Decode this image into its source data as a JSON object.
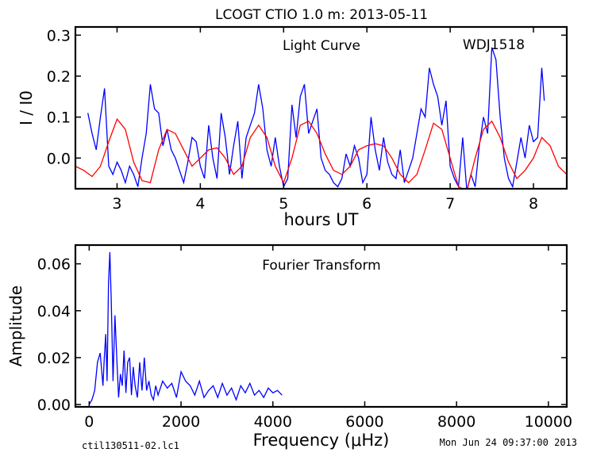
{
  "page": {
    "title": "LCOGT CTIO 1.0 m:  2013-05-11",
    "footer_left": "ctil130511-02.lc1",
    "footer_right": "Mon Jun 24 09:37:00 2013"
  },
  "chart_data": [
    {
      "type": "line",
      "title": "Light Curve",
      "annotation": "WDJ1518",
      "xlabel": "hours UT",
      "ylabel": "I / I0",
      "xlim": [
        2.5,
        8.4
      ],
      "ylim": [
        -0.075,
        0.32
      ],
      "xticks": [
        3,
        4,
        5,
        6,
        7,
        8
      ],
      "xtick_labels": [
        "3",
        "4",
        "5",
        "6",
        "7",
        "8"
      ],
      "yticks": [
        0.0,
        0.1,
        0.2,
        0.3
      ],
      "ytick_labels": [
        "0.0",
        "0.1",
        "0.2",
        "0.3"
      ],
      "grid": false,
      "series": [
        {
          "color": "#0000ff",
          "x": [
            2.65,
            2.7,
            2.75,
            2.8,
            2.85,
            2.9,
            2.95,
            3.0,
            3.05,
            3.1,
            3.15,
            3.2,
            3.25,
            3.3,
            3.35,
            3.4,
            3.45,
            3.5,
            3.55,
            3.6,
            3.65,
            3.7,
            3.75,
            3.8,
            3.85,
            3.9,
            3.95,
            4.0,
            4.05,
            4.1,
            4.15,
            4.2,
            4.25,
            4.3,
            4.35,
            4.4,
            4.45,
            4.5,
            4.55,
            4.6,
            4.65,
            4.7,
            4.75,
            4.8,
            4.85,
            4.9,
            4.95,
            5.0,
            5.05,
            5.1,
            5.15,
            5.2,
            5.25,
            5.3,
            5.35,
            5.4,
            5.45,
            5.5,
            5.55,
            5.6,
            5.65,
            5.7,
            5.75,
            5.8,
            5.85,
            5.9,
            5.95,
            6.0,
            6.05,
            6.1,
            6.15,
            6.2,
            6.25,
            6.3,
            6.35,
            6.4,
            6.45,
            6.5,
            6.55,
            6.6,
            6.65,
            6.7,
            6.75,
            6.8,
            6.85,
            6.9,
            6.95,
            7.0,
            7.05,
            7.1,
            7.15,
            7.2,
            7.25,
            7.3,
            7.35,
            7.4,
            7.45,
            7.5,
            7.55,
            7.6,
            7.65,
            7.7,
            7.75,
            7.8,
            7.85,
            7.9,
            7.95,
            8.0,
            8.05,
            8.1,
            8.13
          ],
          "y": [
            0.11,
            0.06,
            0.02,
            0.1,
            0.17,
            -0.02,
            -0.04,
            -0.01,
            -0.03,
            -0.06,
            -0.02,
            -0.04,
            -0.07,
            0.0,
            0.06,
            0.18,
            0.12,
            0.11,
            0.03,
            0.07,
            0.02,
            0.0,
            -0.03,
            -0.06,
            -0.01,
            0.05,
            0.04,
            -0.02,
            -0.05,
            0.08,
            0.0,
            -0.05,
            0.11,
            0.05,
            -0.04,
            0.03,
            0.09,
            -0.05,
            0.05,
            0.08,
            0.11,
            0.18,
            0.12,
            0.02,
            -0.02,
            0.05,
            -0.02,
            -0.07,
            -0.05,
            0.13,
            0.05,
            0.15,
            0.18,
            0.06,
            0.09,
            0.12,
            0.0,
            -0.03,
            -0.04,
            -0.06,
            -0.07,
            -0.05,
            0.01,
            -0.02,
            0.03,
            0.0,
            -0.06,
            -0.04,
            0.1,
            0.02,
            -0.03,
            0.05,
            -0.01,
            -0.04,
            -0.05,
            0.02,
            -0.06,
            -0.03,
            0.0,
            0.06,
            0.12,
            0.1,
            0.22,
            0.18,
            0.15,
            0.08,
            0.14,
            -0.02,
            -0.05,
            -0.07,
            0.05,
            -0.08,
            -0.04,
            -0.07,
            0.03,
            0.1,
            0.06,
            0.27,
            0.24,
            0.1,
            0.0,
            -0.05,
            -0.07,
            -0.01,
            0.05,
            0.0,
            0.08,
            0.04,
            0.05,
            0.22,
            0.14
          ]
        },
        {
          "color": "#ff0000",
          "x": [
            2.5,
            2.6,
            2.7,
            2.8,
            2.9,
            3.0,
            3.1,
            3.2,
            3.3,
            3.4,
            3.5,
            3.6,
            3.7,
            3.8,
            3.9,
            4.0,
            4.1,
            4.2,
            4.3,
            4.4,
            4.5,
            4.6,
            4.7,
            4.8,
            4.9,
            5.0,
            5.1,
            5.2,
            5.3,
            5.4,
            5.5,
            5.6,
            5.7,
            5.8,
            5.9,
            6.0,
            6.1,
            6.2,
            6.3,
            6.4,
            6.5,
            6.6,
            6.7,
            6.8,
            6.9,
            7.0,
            7.1,
            7.2,
            7.3,
            7.4,
            7.5,
            7.6,
            7.7,
            7.8,
            7.9,
            8.0,
            8.1,
            8.2,
            8.3,
            8.4
          ],
          "y": [
            -0.02,
            -0.03,
            -0.045,
            -0.02,
            0.04,
            0.095,
            0.07,
            -0.01,
            -0.055,
            -0.06,
            0.02,
            0.07,
            0.06,
            0.02,
            -0.02,
            0.0,
            0.02,
            0.025,
            0.0,
            -0.04,
            -0.02,
            0.05,
            0.08,
            0.05,
            -0.02,
            -0.06,
            0.0,
            0.08,
            0.09,
            0.06,
            0.01,
            -0.03,
            -0.04,
            -0.02,
            0.02,
            0.03,
            0.035,
            0.03,
            0.0,
            -0.04,
            -0.06,
            -0.04,
            0.02,
            0.085,
            0.07,
            0.0,
            -0.07,
            -0.08,
            0.0,
            0.07,
            0.09,
            0.05,
            -0.01,
            -0.05,
            -0.03,
            0.0,
            0.05,
            0.03,
            -0.02,
            -0.04
          ]
        }
      ]
    },
    {
      "type": "line",
      "title": "Fourier Transform",
      "xlabel": "Frequency (μHz)",
      "ylabel": "Amplitude",
      "xlim": [
        -300,
        10400
      ],
      "ylim": [
        -0.001,
        0.068
      ],
      "xticks": [
        0,
        2000,
        4000,
        6000,
        8000,
        10000
      ],
      "xtick_labels": [
        "0",
        "2000",
        "4000",
        "6000",
        "8000",
        "10000"
      ],
      "yticks": [
        0.0,
        0.02,
        0.04,
        0.06
      ],
      "ytick_labels": [
        "0.00",
        "0.02",
        "0.04",
        "0.06"
      ],
      "grid": false,
      "series": [
        {
          "color": "#0000ff",
          "x": [
            0,
            60,
            120,
            180,
            240,
            300,
            330,
            360,
            390,
            420,
            450,
            480,
            520,
            560,
            600,
            640,
            680,
            720,
            760,
            800,
            840,
            880,
            920,
            960,
            1000,
            1050,
            1100,
            1150,
            1200,
            1250,
            1300,
            1350,
            1400,
            1450,
            1500,
            1600,
            1700,
            1800,
            1900,
            2000,
            2100,
            2200,
            2300,
            2400,
            2500,
            2600,
            2700,
            2800,
            2900,
            3000,
            3100,
            3200,
            3300,
            3400,
            3500,
            3600,
            3700,
            3800,
            3900,
            4000,
            4100,
            4200
          ],
          "y": [
            0.0,
            0.002,
            0.006,
            0.018,
            0.022,
            0.008,
            0.02,
            0.03,
            0.01,
            0.052,
            0.065,
            0.045,
            0.01,
            0.038,
            0.02,
            0.003,
            0.013,
            0.008,
            0.023,
            0.005,
            0.018,
            0.02,
            0.004,
            0.016,
            0.008,
            0.003,
            0.018,
            0.006,
            0.02,
            0.006,
            0.01,
            0.004,
            0.002,
            0.008,
            0.004,
            0.01,
            0.007,
            0.009,
            0.003,
            0.014,
            0.01,
            0.008,
            0.004,
            0.01,
            0.003,
            0.006,
            0.008,
            0.003,
            0.009,
            0.004,
            0.007,
            0.002,
            0.008,
            0.005,
            0.009,
            0.004,
            0.006,
            0.003,
            0.007,
            0.005,
            0.006,
            0.004
          ]
        }
      ]
    }
  ]
}
